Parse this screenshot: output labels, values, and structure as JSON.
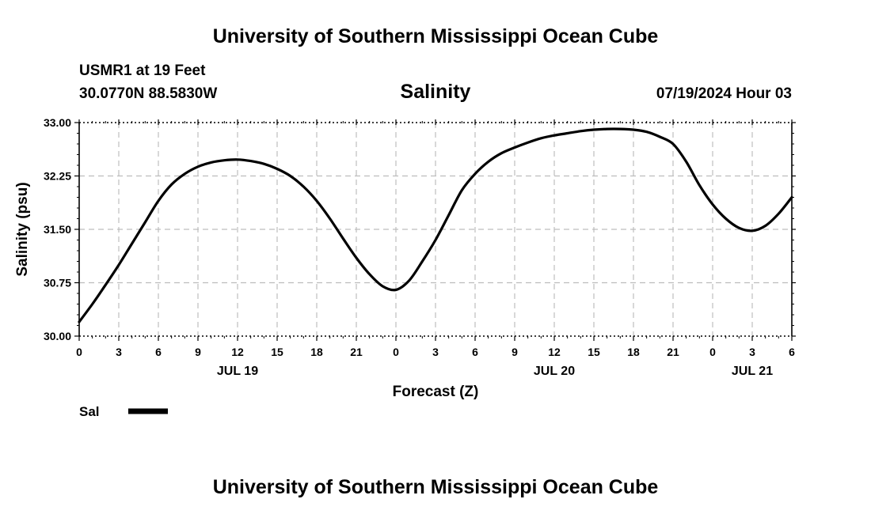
{
  "header": {
    "title": "University of Southern Mississippi Ocean Cube",
    "station": "USMR1 at 19 Feet",
    "coords": "30.0770N  88.5830W",
    "timestamp": "07/19/2024 Hour 03"
  },
  "footer": {
    "title": "University of Southern Mississippi Ocean Cube"
  },
  "chart_data": {
    "type": "line",
    "title": "Salinity",
    "xlabel": "Forecast (Z)",
    "ylabel": "Salinity (psu)",
    "xlim": [
      0,
      54
    ],
    "ylim": [
      30.0,
      33.0
    ],
    "grid": true,
    "x_ticks": [
      0,
      3,
      6,
      9,
      12,
      15,
      18,
      21,
      24,
      27,
      30,
      33,
      36,
      39,
      42,
      45,
      48,
      51,
      54
    ],
    "x_tick_labels": [
      "0",
      "3",
      "6",
      "9",
      "12",
      "15",
      "18",
      "21",
      "0",
      "3",
      "6",
      "9",
      "12",
      "15",
      "18",
      "21",
      "0",
      "3",
      "6"
    ],
    "y_ticks": [
      30.0,
      30.75,
      31.5,
      32.25,
      33.0
    ],
    "y_tick_labels": [
      "30.00",
      "30.75",
      "31.50",
      "32.25",
      "33.00"
    ],
    "date_labels": [
      {
        "x": 12,
        "label": "JUL 19"
      },
      {
        "x": 36,
        "label": "JUL 20"
      },
      {
        "x": 51,
        "label": "JUL 21"
      }
    ],
    "series": [
      {
        "name": "Sal",
        "color": "#000000",
        "x": [
          0,
          1,
          2,
          3,
          4,
          5,
          6,
          7,
          8,
          9,
          10,
          11,
          12,
          13,
          14,
          15,
          16,
          17,
          18,
          19,
          20,
          21,
          22,
          23,
          24,
          25,
          26,
          27,
          28,
          29,
          30,
          31,
          32,
          33,
          34,
          35,
          36,
          37,
          38,
          39,
          40,
          41,
          42,
          43,
          44,
          45,
          46,
          47,
          48,
          49,
          50,
          51,
          52,
          53,
          54
        ],
        "values": [
          30.2,
          30.45,
          30.72,
          31.0,
          31.3,
          31.6,
          31.9,
          32.13,
          32.28,
          32.38,
          32.44,
          32.47,
          32.48,
          32.46,
          32.42,
          32.35,
          32.25,
          32.1,
          31.9,
          31.65,
          31.37,
          31.1,
          30.87,
          30.7,
          30.65,
          30.78,
          31.05,
          31.35,
          31.7,
          32.05,
          32.28,
          32.45,
          32.57,
          32.65,
          32.72,
          32.78,
          32.82,
          32.85,
          32.88,
          32.9,
          32.91,
          32.91,
          32.9,
          32.87,
          32.8,
          32.7,
          32.45,
          32.12,
          31.85,
          31.65,
          31.52,
          31.48,
          31.55,
          31.72,
          31.95
        ]
      }
    ],
    "legend": [
      {
        "label": "Sal",
        "color": "#000000"
      }
    ]
  }
}
